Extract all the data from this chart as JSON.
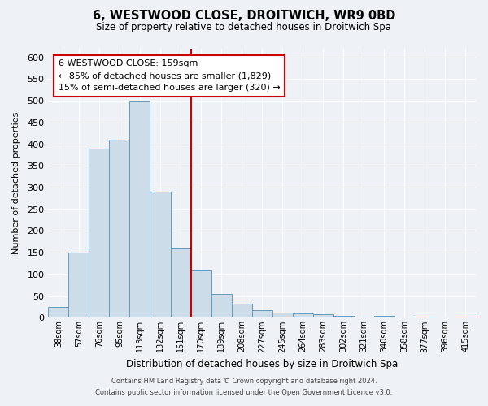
{
  "title": "6, WESTWOOD CLOSE, DROITWICH, WR9 0BD",
  "subtitle": "Size of property relative to detached houses in Droitwich Spa",
  "xlabel": "Distribution of detached houses by size in Droitwich Spa",
  "ylabel": "Number of detached properties",
  "bar_labels": [
    "38sqm",
    "57sqm",
    "76sqm",
    "95sqm",
    "113sqm",
    "132sqm",
    "151sqm",
    "170sqm",
    "189sqm",
    "208sqm",
    "227sqm",
    "245sqm",
    "264sqm",
    "283sqm",
    "302sqm",
    "321sqm",
    "340sqm",
    "358sqm",
    "377sqm",
    "396sqm",
    "415sqm"
  ],
  "bar_values": [
    25,
    150,
    390,
    410,
    500,
    290,
    160,
    110,
    55,
    33,
    18,
    12,
    10,
    8,
    5,
    1,
    4,
    1,
    3,
    1,
    2
  ],
  "bar_color": "#ccdce8",
  "bar_edge_color": "#6699bb",
  "vline_color": "#cc0000",
  "annotation_title": "6 WESTWOOD CLOSE: 159sqm",
  "annotation_line1": "← 85% of detached houses are smaller (1,829)",
  "annotation_line2": "15% of semi-detached houses are larger (320) →",
  "annotation_box_edge": "#cc0000",
  "annotation_box_bg": "#ffffff",
  "ylim": [
    0,
    620
  ],
  "yticks": [
    0,
    50,
    100,
    150,
    200,
    250,
    300,
    350,
    400,
    450,
    500,
    550,
    600
  ],
  "footer_line1": "Contains HM Land Registry data © Crown copyright and database right 2024.",
  "footer_line2": "Contains public sector information licensed under the Open Government Licence v3.0.",
  "bg_color": "#eef2f7",
  "grid_color": "#ffffff",
  "plot_bg_color": "#eef2f7"
}
